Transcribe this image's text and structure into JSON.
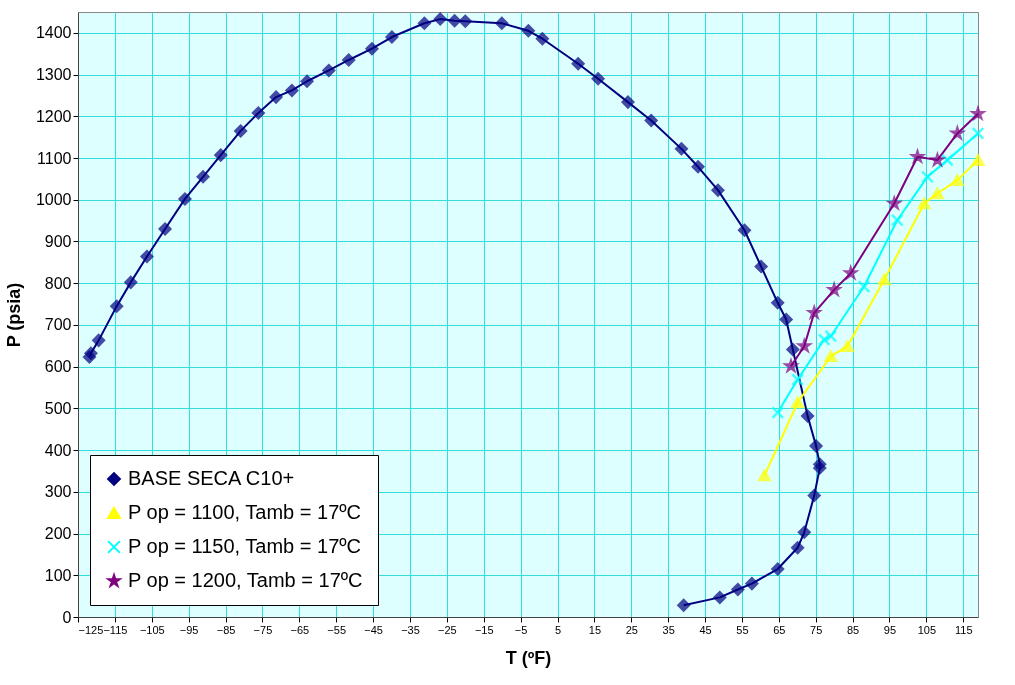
{
  "chart_data": {
    "type": "line",
    "xlabel": "T (ºF)",
    "ylabel": "P (psia)",
    "xlim": [
      -125,
      119
    ],
    "ylim": [
      0,
      1450
    ],
    "xticks": [
      -125,
      -115,
      -105,
      -95,
      -85,
      -75,
      -65,
      -55,
      -45,
      -35,
      -25,
      -15,
      -5,
      5,
      15,
      25,
      35,
      45,
      55,
      65,
      75,
      85,
      95,
      105,
      115
    ],
    "yticks": [
      0,
      100,
      200,
      300,
      400,
      500,
      600,
      700,
      800,
      900,
      1000,
      1100,
      1200,
      1300,
      1400
    ],
    "grid": true,
    "legend": "bottom left",
    "series": [
      {
        "name": "BASE SECA C10+",
        "color": "#000080",
        "marker": "diamond",
        "x": [
          -121.9,
          -121.5,
          -119.4,
          -114.5,
          -110.7,
          -106.3,
          -101.4,
          -96,
          -91.1,
          -86.3,
          -80.9,
          -76.1,
          -71.3,
          -67,
          -62.9,
          -57,
          -51.6,
          -45.3,
          -39.9,
          -31.1,
          -26.8,
          -22.9,
          -20,
          -10.1,
          -2.9,
          0.9,
          10.6,
          16,
          24.1,
          30.4,
          38.6,
          43.1,
          48.5,
          55.7,
          60.2,
          64.7,
          67,
          68.8,
          72.8,
          75.1,
          76.1,
          76.1,
          74.6,
          71.9,
          70.1,
          64.7,
          57.7,
          53.9,
          49,
          39.2
        ],
        "values": [
          623,
          632,
          663,
          745,
          802,
          864,
          930,
          1002,
          1055,
          1107,
          1165,
          1208,
          1246,
          1262,
          1284,
          1310,
          1335,
          1362,
          1390,
          1423,
          1433,
          1429,
          1428,
          1423,
          1405,
          1386,
          1326,
          1290,
          1234,
          1190,
          1122,
          1079,
          1023,
          927,
          840,
          753,
          713,
          641,
          482,
          410,
          366,
          357,
          291,
          203,
          166,
          115,
          80,
          66,
          47,
          28
        ]
      },
      {
        "name": "P op = 1100, Tamb = 17ºC",
        "color": "#ffff00",
        "marker": "triangle",
        "x": [
          61.1,
          70.1,
          79.1,
          83.6,
          93.6,
          104.4,
          108,
          113.4,
          119
        ],
        "values": [
          339,
          514,
          625,
          649,
          809,
          991,
          1015,
          1047,
          1095
        ]
      },
      {
        "name": "P op = 1150, Tamb = 17ºC",
        "color": "#00ffff",
        "marker": "cross",
        "x": [
          64.7,
          70.1,
          77.3,
          79.1,
          88.1,
          97.1,
          105.3,
          110.7,
          119
        ],
        "values": [
          490,
          569,
          665,
          673,
          792,
          951,
          1055,
          1095,
          1159
        ]
      },
      {
        "name": "P op = 1200, Tamb = 17ºC",
        "color": "#800080",
        "marker": "star",
        "x": [
          68.3,
          71.9,
          74.6,
          80,
          84.5,
          96.3,
          102.6,
          108,
          113.4,
          119
        ],
        "values": [
          601,
          649,
          729,
          784,
          824,
          991,
          1103,
          1095,
          1159,
          1206
        ]
      }
    ]
  }
}
